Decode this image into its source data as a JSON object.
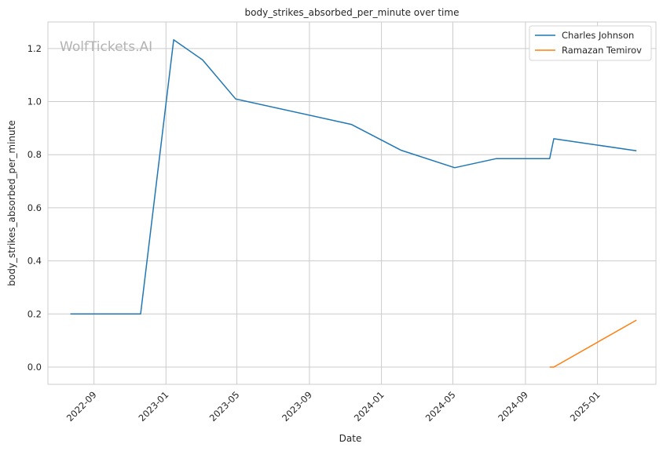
{
  "chart_data": {
    "type": "line",
    "title": "body_strikes_absorbed_per_minute over time",
    "xlabel": "Date",
    "ylabel": "body_strikes_absorbed_per_minute",
    "watermark": "WolfTickets.AI",
    "grid": true,
    "legend_position": "top-right",
    "xlim": [
      "2022-06-15",
      "2025-04-10"
    ],
    "ylim": [
      -0.065,
      1.3
    ],
    "x_ticks": [
      "2022-09-01",
      "2023-01-01",
      "2023-05-01",
      "2023-09-01",
      "2024-01-01",
      "2024-05-01",
      "2024-09-01",
      "2025-01-01"
    ],
    "x_tick_labels": [
      "2022-09",
      "2023-01",
      "2023-05",
      "2023-09",
      "2024-01",
      "2024-05",
      "2024-09",
      "2025-01"
    ],
    "y_ticks": [
      0.0,
      0.2,
      0.4,
      0.6,
      0.8,
      1.0,
      1.2
    ],
    "y_tick_labels": [
      "0.0",
      "0.2",
      "0.4",
      "0.6",
      "0.8",
      "1.0",
      "1.2"
    ],
    "series": [
      {
        "name": "Charles Johnson",
        "color": "#1f77b4",
        "points": [
          {
            "x": "2022-07-23",
            "y": 0.2
          },
          {
            "x": "2022-11-19",
            "y": 0.2
          },
          {
            "x": "2023-01-14",
            "y": 1.233
          },
          {
            "x": "2023-03-04",
            "y": 1.157
          },
          {
            "x": "2023-04-29",
            "y": 1.01
          },
          {
            "x": "2023-11-11",
            "y": 0.914
          },
          {
            "x": "2024-02-03",
            "y": 0.817
          },
          {
            "x": "2024-05-04",
            "y": 0.751
          },
          {
            "x": "2024-07-13",
            "y": 0.785
          },
          {
            "x": "2024-10-12",
            "y": 0.785
          },
          {
            "x": "2024-10-19",
            "y": 0.86
          },
          {
            "x": "2025-03-08",
            "y": 0.815
          }
        ]
      },
      {
        "name": "Ramazan Temirov",
        "color": "#ff7f0e",
        "points": [
          {
            "x": "2024-10-12",
            "y": 0.0
          },
          {
            "x": "2024-10-19",
            "y": 0.0
          },
          {
            "x": "2025-03-08",
            "y": 0.177
          }
        ]
      }
    ]
  }
}
